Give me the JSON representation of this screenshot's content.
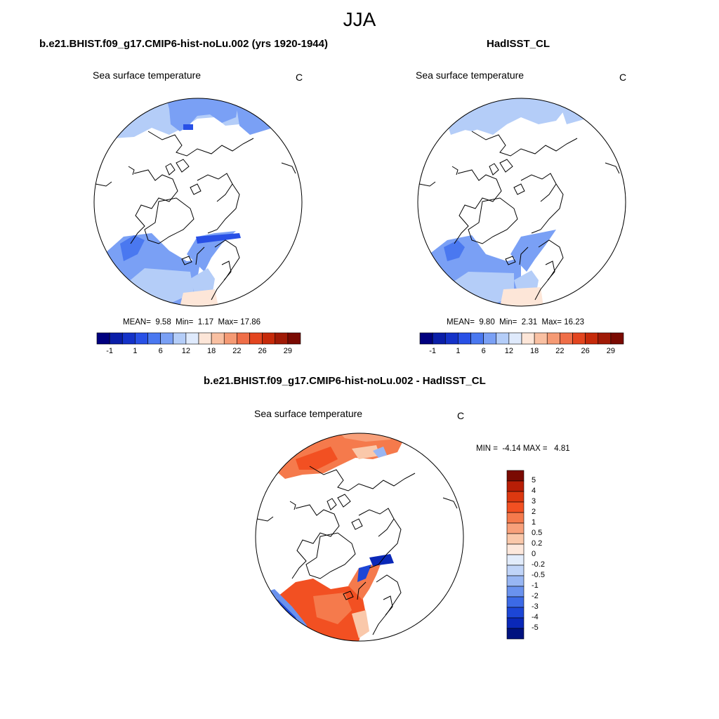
{
  "title": "JJA",
  "panels": [
    {
      "title": "b.e21.BHIST.f09_g17.CMIP6-hist-noLu.002 (yrs 1920-1944)",
      "variable": "Sea surface temperature",
      "units": "C",
      "stats": {
        "mean_label": "MEAN=",
        "mean": "9.58",
        "min_label": "Min=",
        "min": "1.17",
        "max_label": "Max=",
        "max": "17.86"
      }
    },
    {
      "title": "HadISST_CL",
      "variable": "Sea surface temperature",
      "units": "C",
      "stats": {
        "mean_label": "MEAN=",
        "mean": "9.80",
        "min_label": "Min=",
        "min": "2.31",
        "max_label": "Max=",
        "max": "16.23"
      }
    },
    {
      "title": "b.e21.BHIST.f09_g17.CMIP6-hist-noLu.002 - HadISST_CL",
      "variable": "Sea surface temperature",
      "units": "C",
      "stats": {
        "min_label": "MIN =",
        "min": "-4.14",
        "max_label": "MAX =",
        "max": "4.81"
      }
    }
  ],
  "colorbar_abs": {
    "tick_labels": [
      "-1",
      "1",
      "6",
      "12",
      "18",
      "22",
      "26",
      "29"
    ],
    "colors": [
      "#00007f",
      "#0a1ea8",
      "#1432c8",
      "#2850e6",
      "#4a78f0",
      "#7aa0f5",
      "#b4cdf8",
      "#dfeafc",
      "#fde6d8",
      "#f9c0a2",
      "#f59a74",
      "#ef6e48",
      "#e3451f",
      "#c62a0a",
      "#a01a06",
      "#7a0a02"
    ]
  },
  "colorbar_diff": {
    "tick_labels": [
      "5",
      "4",
      "3",
      "2",
      "1",
      "0.5",
      "0.2",
      "0",
      "-0.2",
      "-0.5",
      "-1",
      "-2",
      "-3",
      "-4",
      "-5"
    ],
    "colors": [
      "#7a0a02",
      "#b81e06",
      "#dc3810",
      "#f25022",
      "#f57a4c",
      "#f8a07a",
      "#fac8aa",
      "#fde8dc",
      "#e2ecfb",
      "#c0d4f8",
      "#98b6f3",
      "#6a92ee",
      "#3c6ae6",
      "#1c46d6",
      "#0a28b8",
      "#00127f"
    ]
  }
}
